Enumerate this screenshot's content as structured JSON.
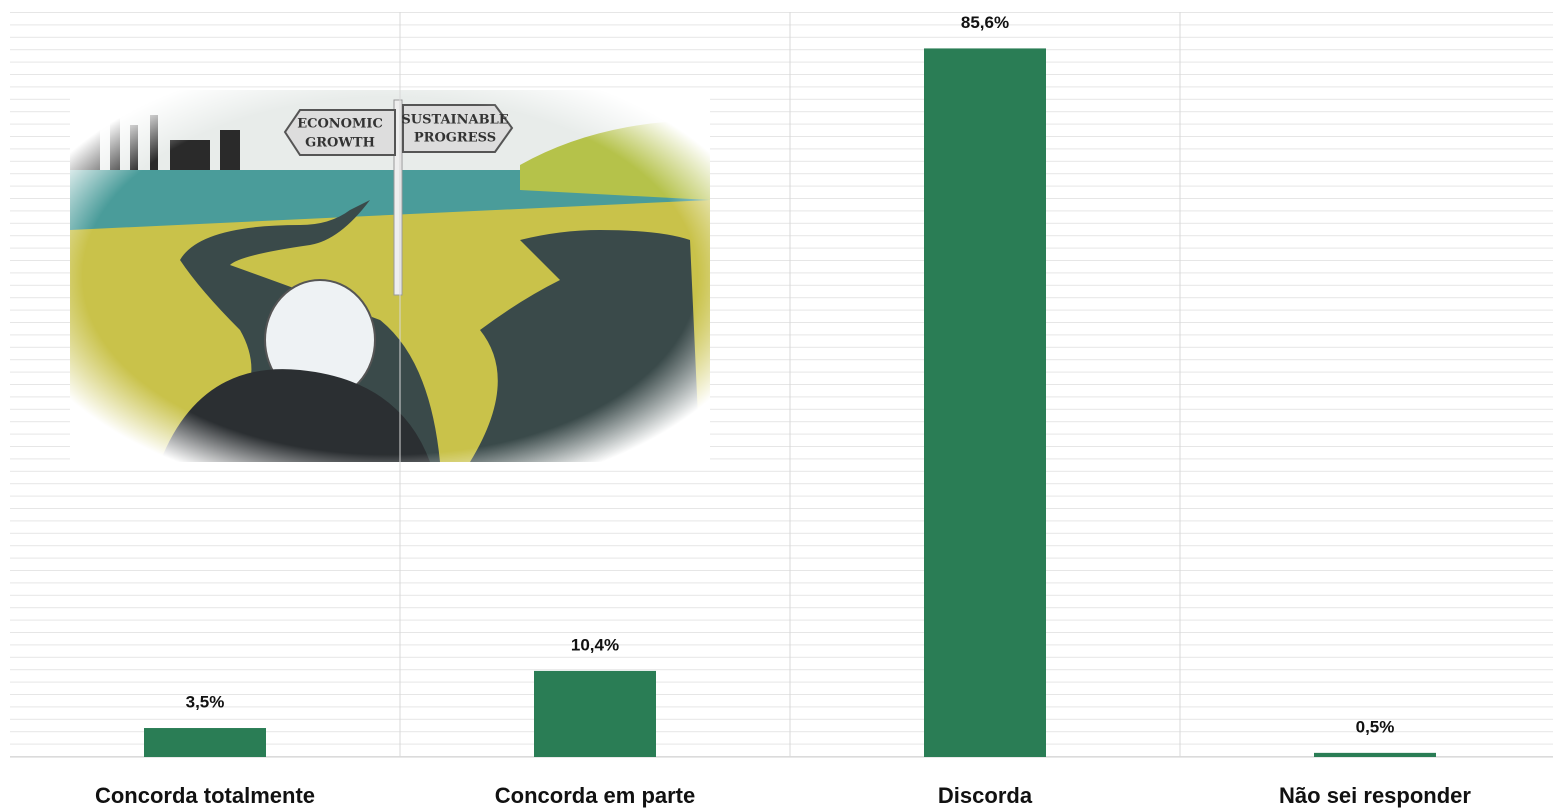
{
  "chart_data": {
    "type": "bar",
    "categories": [
      "Concorda totalmente",
      "Concorda em parte",
      "Discorda",
      "Não sei responder"
    ],
    "values": [
      3.5,
      10.4,
      85.6,
      0.5
    ],
    "value_labels": [
      "3,5%",
      "10,4%",
      "85,6%",
      "0,5%"
    ],
    "color": "#2a7d55",
    "ylim": [
      0,
      90
    ],
    "annotations": [
      "ECONOMIC",
      "GROWTH",
      "SUSTAINABLE",
      "PROGRESS"
    ]
  }
}
